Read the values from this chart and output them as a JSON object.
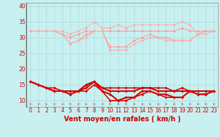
{
  "xlabel": "Vent moyen/en rafales ( km/h )",
  "bg_color": "#c8f0f0",
  "grid_color": "#a8dada",
  "x": [
    0,
    1,
    2,
    3,
    4,
    5,
    6,
    7,
    8,
    9,
    10,
    11,
    12,
    13,
    14,
    15,
    16,
    17,
    18,
    19,
    20,
    21,
    22,
    23
  ],
  "series": [
    {
      "name": "rafales_top",
      "y": [
        32,
        32,
        32,
        32,
        32,
        31,
        32,
        33,
        35,
        33,
        33,
        34,
        33,
        34,
        34,
        34,
        34,
        34,
        34,
        35,
        34,
        31,
        32,
        32
      ],
      "color": "#ffaaaa",
      "lw": 0.8,
      "marker": "D",
      "ms": 1.8
    },
    {
      "name": "rafales_hi",
      "y": [
        32,
        32,
        32,
        32,
        31,
        30,
        31,
        32,
        32,
        32,
        32,
        32,
        32,
        32,
        32,
        32,
        32,
        32,
        32,
        33,
        32,
        32,
        32,
        32
      ],
      "color": "#ff9999",
      "lw": 0.8,
      "marker": "D",
      "ms": 1.8
    },
    {
      "name": "rafales_dip",
      "y": [
        32,
        32,
        32,
        32,
        31,
        28,
        29,
        31,
        32,
        32,
        27,
        27,
        27,
        29,
        30,
        31,
        30,
        30,
        29,
        29,
        29,
        31,
        32,
        32
      ],
      "color": "#ff9999",
      "lw": 0.8,
      "marker": "D",
      "ms": 1.8
    },
    {
      "name": "rafales_low",
      "y": [
        32,
        32,
        32,
        32,
        31,
        28,
        29,
        30,
        32,
        32,
        26,
        26,
        26,
        28,
        29,
        30,
        30,
        29,
        29,
        29,
        29,
        31,
        31,
        32
      ],
      "color": "#ffaaaa",
      "lw": 0.8,
      "marker": "D",
      "ms": 1.8
    },
    {
      "name": "mean_top",
      "y": [
        16,
        15,
        14,
        14,
        13,
        13,
        13,
        15,
        16,
        14,
        14,
        14,
        14,
        14,
        14,
        14,
        14,
        14,
        13,
        14,
        13,
        13,
        13,
        13
      ],
      "color": "#dd0000",
      "lw": 1.2,
      "marker": "D",
      "ms": 1.8
    },
    {
      "name": "mean_hi",
      "y": [
        16,
        15,
        14,
        13,
        13,
        13,
        13,
        15,
        16,
        14,
        13,
        13,
        13,
        13,
        14,
        14,
        13,
        13,
        13,
        13,
        13,
        13,
        13,
        13
      ],
      "color": "#cc0000",
      "lw": 1.5,
      "marker": "D",
      "ms": 1.8
    },
    {
      "name": "mean_mid",
      "y": [
        16,
        15,
        14,
        13,
        13,
        12,
        13,
        14,
        16,
        13,
        12,
        10,
        11,
        11,
        13,
        13,
        12,
        12,
        11,
        11,
        13,
        12,
        12,
        13
      ],
      "color": "#cc0000",
      "lw": 1.5,
      "marker": "D",
      "ms": 1.8
    },
    {
      "name": "mean_low",
      "y": [
        16,
        15,
        14,
        13,
        13,
        12,
        13,
        13,
        15,
        13,
        10,
        10,
        10,
        11,
        12,
        13,
        12,
        11,
        11,
        11,
        13,
        12,
        12,
        13
      ],
      "color": "#dd0000",
      "lw": 1.2,
      "marker": "D",
      "ms": 1.8
    },
    {
      "name": "wind_dir",
      "y": [
        8.8,
        8.8,
        8.8,
        8.8,
        8.8,
        8.8,
        8.8,
        8.8,
        8.8,
        8.8,
        8.8,
        8.8,
        8.8,
        8.8,
        8.8,
        8.8,
        8.8,
        8.8,
        8.8,
        8.8,
        8.8,
        8.8,
        8.8,
        8.8
      ],
      "color": "#cc0000",
      "lw": 0.0,
      "marker": "4",
      "ms": 4.0
    }
  ],
  "ylim": [
    8,
    41
  ],
  "yticks": [
    10,
    15,
    20,
    25,
    30,
    35,
    40
  ],
  "xticks": [
    0,
    1,
    2,
    3,
    4,
    5,
    6,
    7,
    8,
    9,
    10,
    11,
    12,
    13,
    14,
    15,
    16,
    17,
    18,
    19,
    20,
    21,
    22,
    23
  ],
  "tick_fontsize": 5.5,
  "label_fontsize": 7.0
}
